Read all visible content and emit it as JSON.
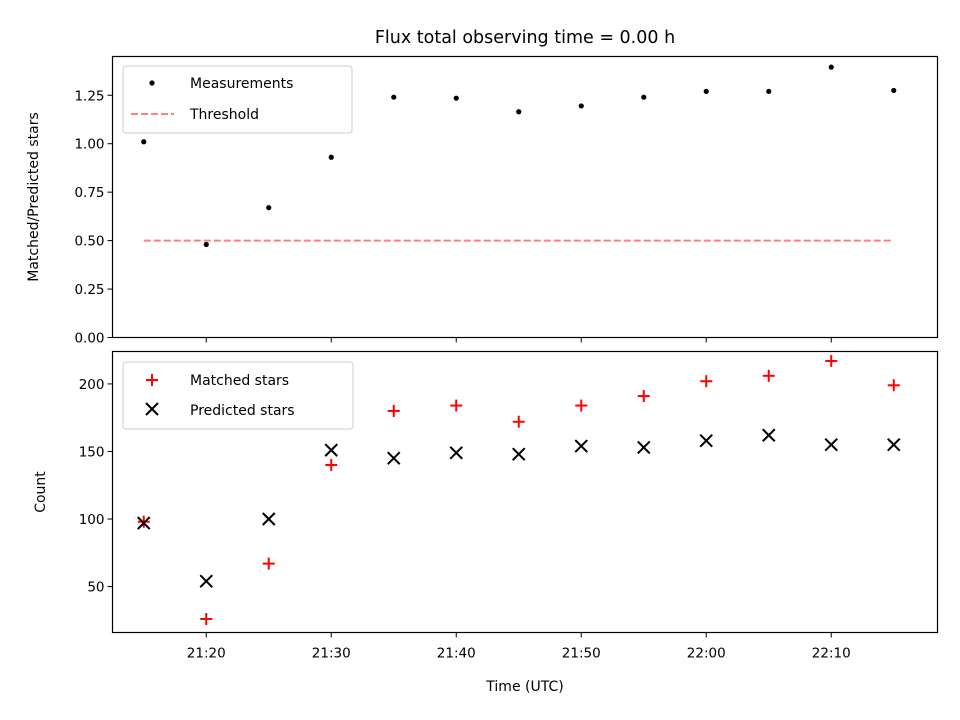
{
  "figure": {
    "title": "Flux total observing time = 0.00 h",
    "xlabel": "Time (UTC)"
  },
  "chart_data": [
    {
      "type": "scatter",
      "panel": "top",
      "title": "Flux total observing time = 0.00 h",
      "xlabel": "",
      "ylabel": "Matched/Predicted stars",
      "ylim": [
        0.0,
        1.45
      ],
      "yticks": [
        0.0,
        0.25,
        0.5,
        0.75,
        1.0,
        1.25
      ],
      "ytick_labels": [
        "0.00",
        "0.25",
        "0.50",
        "0.75",
        "1.00",
        "1.25"
      ],
      "legend": "top-left",
      "grid": false,
      "series": [
        {
          "name": "Measurements",
          "kind": "scatter",
          "marker": "dot",
          "color": "#000000",
          "x": [
            "21:15",
            "21:20",
            "21:25",
            "21:30",
            "21:35",
            "21:40",
            "21:45",
            "21:50",
            "21:55",
            "22:00",
            "22:05",
            "22:10",
            "22:15"
          ],
          "y": [
            1.01,
            0.48,
            0.67,
            0.93,
            1.24,
            1.235,
            1.165,
            1.195,
            1.24,
            1.27,
            1.27,
            1.395,
            1.275
          ]
        },
        {
          "name": "Threshold",
          "kind": "line",
          "style": "dashed",
          "color": "#ff7f7f",
          "x": [
            "21:15",
            "22:15"
          ],
          "y": [
            0.5,
            0.5
          ]
        }
      ]
    },
    {
      "type": "scatter",
      "panel": "bottom",
      "xlabel": "Time (UTC)",
      "ylabel": "Count",
      "ylim": [
        16,
        224
      ],
      "yticks": [
        50,
        100,
        150,
        200
      ],
      "ytick_labels": [
        "50",
        "100",
        "150",
        "200"
      ],
      "xlim": [
        "21:12:30",
        "22:18:30"
      ],
      "xticks": [
        "21:20",
        "21:30",
        "21:40",
        "21:50",
        "22:00",
        "22:10"
      ],
      "legend": "top-left",
      "grid": false,
      "series": [
        {
          "name": "Matched stars",
          "kind": "scatter",
          "marker": "plus",
          "color": "#ff0000",
          "x": [
            "21:15",
            "21:20",
            "21:25",
            "21:30",
            "21:35",
            "21:40",
            "21:45",
            "21:50",
            "21:55",
            "22:00",
            "22:05",
            "22:10",
            "22:15"
          ],
          "y": [
            98,
            26,
            67,
            140,
            180,
            184,
            172,
            184,
            191,
            202,
            206,
            217,
            199
          ]
        },
        {
          "name": "Predicted stars",
          "kind": "scatter",
          "marker": "x",
          "color": "#000000",
          "x": [
            "21:15",
            "21:20",
            "21:25",
            "21:30",
            "21:35",
            "21:40",
            "21:45",
            "21:50",
            "21:55",
            "22:00",
            "22:05",
            "22:10",
            "22:15"
          ],
          "y": [
            97,
            54,
            100,
            151,
            145,
            149,
            148,
            154,
            153,
            158,
            162,
            155,
            155
          ]
        }
      ]
    }
  ]
}
